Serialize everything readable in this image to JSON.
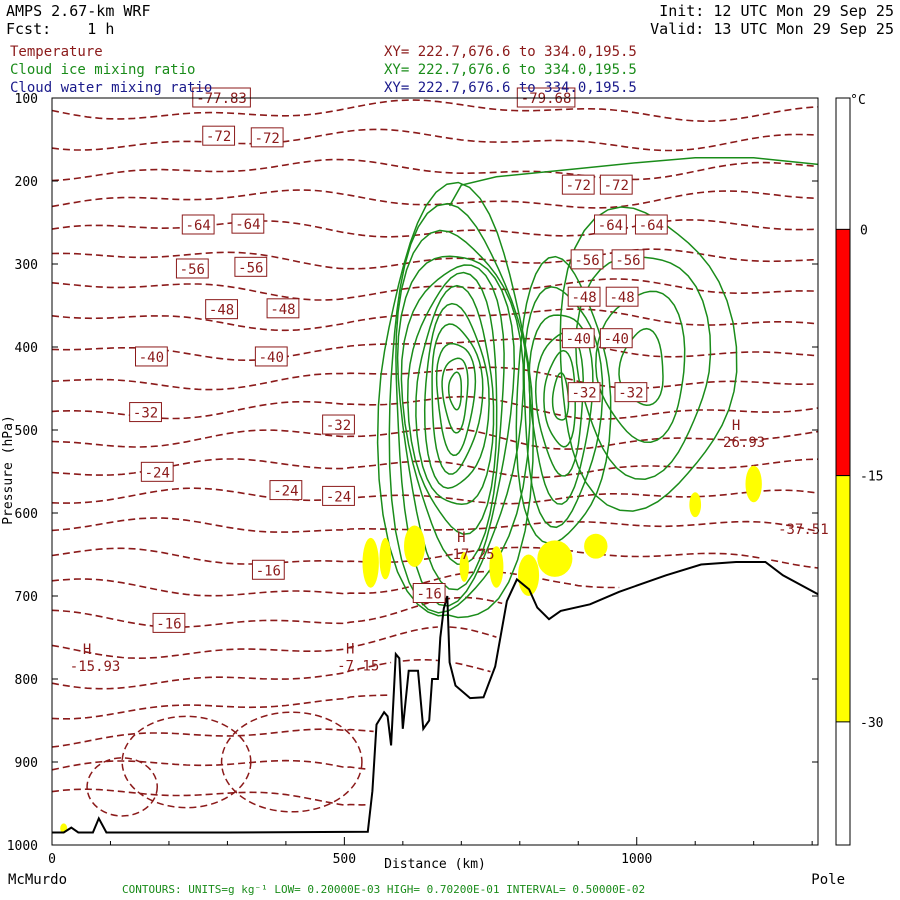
{
  "header": {
    "model": "AMPS 2.67-km WRF",
    "forecast": "Fcst:    1 h",
    "init": "Init: 12 UTC Mon 29 Sep 25",
    "valid": "Valid: 13 UTC Mon 29 Sep 25"
  },
  "legend": [
    {
      "name": "Temperature",
      "xy": "XY= 222.7,676.6 to 334.0,195.5",
      "color": "#8b1a1a"
    },
    {
      "name": "Cloud ice mixing ratio",
      "xy": "XY= 222.7,676.6 to 334.0,195.5",
      "color": "#1a8c1a"
    },
    {
      "name": "Cloud water mixing ratio",
      "xy": "XY= 222.7,676.6 to 334.0,195.5",
      "color": "#1a1a8b"
    }
  ],
  "footer": {
    "left_end": "McMurdo",
    "right_end": "Pole",
    "contours": "CONTOURS:  UNITS=g kg⁻¹  LOW= 0.20000E-03  HIGH= 0.70200E-01  INTERVAL=  0.50000E-02"
  },
  "chart_data": {
    "type": "contour-cross-section",
    "xlabel": "Distance (km)",
    "ylabel": "Pressure (hPa)",
    "xlim": [
      0,
      1310
    ],
    "ylim": [
      1000,
      100
    ],
    "x_ticks": [
      0,
      500,
      1000
    ],
    "y_ticks": [
      100,
      200,
      300,
      400,
      500,
      600,
      700,
      800,
      900,
      1000
    ],
    "colorbar": {
      "unit": "°C",
      "ticks": [
        0,
        -15,
        -30
      ],
      "bands": [
        {
          "from": 0,
          "to": -15,
          "color": "#ff0000"
        },
        {
          "from": -15,
          "to": -30,
          "color": "#ffff00"
        }
      ]
    },
    "temperature_labels": [
      {
        "x": 290,
        "p": 100,
        "text": "-77.83"
      },
      {
        "x": 845,
        "p": 100,
        "text": "-79.68"
      },
      {
        "x": 285,
        "p": 146,
        "text": "-72"
      },
      {
        "x": 368,
        "p": 148,
        "text": "-72"
      },
      {
        "x": 900,
        "p": 205,
        "text": "-72"
      },
      {
        "x": 965,
        "p": 205,
        "text": "-72"
      },
      {
        "x": 250,
        "p": 253,
        "text": "-64"
      },
      {
        "x": 335,
        "p": 252,
        "text": "-64"
      },
      {
        "x": 955,
        "p": 253,
        "text": "-64"
      },
      {
        "x": 1025,
        "p": 253,
        "text": "-64"
      },
      {
        "x": 240,
        "p": 306,
        "text": "-56"
      },
      {
        "x": 340,
        "p": 304,
        "text": "-56"
      },
      {
        "x": 915,
        "p": 295,
        "text": "-56"
      },
      {
        "x": 985,
        "p": 295,
        "text": "-56"
      },
      {
        "x": 290,
        "p": 355,
        "text": "-48"
      },
      {
        "x": 395,
        "p": 354,
        "text": "-48"
      },
      {
        "x": 910,
        "p": 340,
        "text": "-48"
      },
      {
        "x": 975,
        "p": 340,
        "text": "-48"
      },
      {
        "x": 170,
        "p": 412,
        "text": "-40"
      },
      {
        "x": 375,
        "p": 412,
        "text": "-40"
      },
      {
        "x": 900,
        "p": 390,
        "text": "-40"
      },
      {
        "x": 965,
        "p": 390,
        "text": "-40"
      },
      {
        "x": 160,
        "p": 479,
        "text": "-32"
      },
      {
        "x": 490,
        "p": 494,
        "text": "-32"
      },
      {
        "x": 910,
        "p": 455,
        "text": "-32"
      },
      {
        "x": 990,
        "p": 455,
        "text": "-32"
      },
      {
        "x": 180,
        "p": 551,
        "text": "-24"
      },
      {
        "x": 400,
        "p": 573,
        "text": "-24"
      },
      {
        "x": 490,
        "p": 580,
        "text": "-24"
      },
      {
        "x": 370,
        "p": 669,
        "text": "-16"
      },
      {
        "x": 200,
        "p": 733,
        "text": "-16"
      },
      {
        "x": 645,
        "p": 697,
        "text": "-16"
      }
    ],
    "extrema": [
      {
        "x": 60,
        "p": 770,
        "mark": "H",
        "text": "-15.93"
      },
      {
        "x": 510,
        "p": 769,
        "mark": "H",
        "text": "-7.15"
      },
      {
        "x": 700,
        "p": 635,
        "mark": "H",
        "text": "-17.25"
      },
      {
        "x": 1170,
        "p": 500,
        "mark": "H",
        "text": "26.93"
      },
      {
        "x": 1285,
        "p": 605,
        "mark": "",
        "text": "-37.51"
      }
    ],
    "terrain": [
      [
        0,
        985
      ],
      [
        20,
        985
      ],
      [
        33,
        979
      ],
      [
        45,
        985
      ],
      [
        70,
        985
      ],
      [
        80,
        968
      ],
      [
        93,
        985
      ],
      [
        300,
        985
      ],
      [
        540,
        984
      ],
      [
        548,
        935
      ],
      [
        555,
        855
      ],
      [
        568,
        840
      ],
      [
        574,
        845
      ],
      [
        580,
        880
      ],
      [
        588,
        770
      ],
      [
        594,
        775
      ],
      [
        600,
        860
      ],
      [
        610,
        790
      ],
      [
        626,
        790
      ],
      [
        635,
        860
      ],
      [
        645,
        850
      ],
      [
        650,
        800
      ],
      [
        660,
        800
      ],
      [
        664,
        750
      ],
      [
        670,
        715
      ],
      [
        676,
        700
      ],
      [
        680,
        780
      ],
      [
        690,
        808
      ],
      [
        715,
        823
      ],
      [
        738,
        822
      ],
      [
        758,
        785
      ],
      [
        778,
        706
      ],
      [
        795,
        680
      ],
      [
        816,
        692
      ],
      [
        830,
        714
      ],
      [
        850,
        728
      ],
      [
        870,
        718
      ],
      [
        920,
        710
      ],
      [
        970,
        695
      ],
      [
        1050,
        675
      ],
      [
        1110,
        662
      ],
      [
        1170,
        659
      ],
      [
        1220,
        659
      ],
      [
        1250,
        675
      ],
      [
        1310,
        698
      ]
    ],
    "temperature_contour_count": 24,
    "cloud_ice_contours": "nested contours peaking near x=690 km, p=450 hPa",
    "below_-15C_shading": "yellow patches between 540 and 1220 km near 600-700 hPa"
  }
}
